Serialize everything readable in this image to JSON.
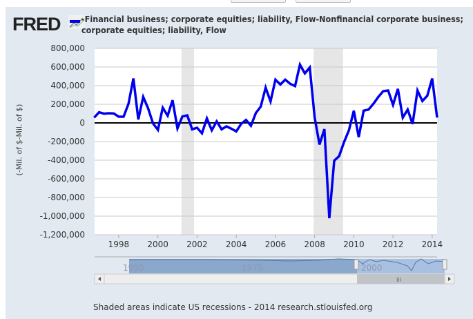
{
  "logo": "FRED",
  "legend": {
    "label": "-Financial business; corporate equities; liability, Flow-Nonfinancial corporate business; corporate equities; liability, Flow",
    "color": "#0000ee"
  },
  "footer": "Shaded areas indicate US recessions - 2014 research.stlouisfed.org",
  "navigator": {
    "labels": [
      "1950",
      "1975",
      "2000"
    ]
  },
  "chart_data": {
    "type": "line",
    "title": "",
    "xlabel": "",
    "ylabel": "(-Mil. of $-Mil. of $)",
    "ylim": [
      -1200000,
      800000
    ],
    "xlim": [
      1996.77,
      2014.25
    ],
    "yticks": [
      800000,
      600000,
      400000,
      200000,
      0,
      -200000,
      -400000,
      -600000,
      -800000,
      -1000000,
      -1200000
    ],
    "ytick_labels": [
      "800,000",
      "600,000",
      "400,000",
      "200,000",
      "0",
      "-200,000",
      "-400,000",
      "-600,000",
      "-800,000",
      "-1,000,000",
      "-1,200,000"
    ],
    "xticks": [
      1998,
      2000,
      2002,
      2004,
      2006,
      2008,
      2010,
      2012,
      2014
    ],
    "xtick_labels": [
      "1998",
      "2000",
      "2002",
      "2004",
      "2006",
      "2008",
      "2010",
      "2012",
      "2014"
    ],
    "grid": true,
    "recessions": [
      [
        2001.2,
        2001.85
      ],
      [
        2007.95,
        2009.45
      ]
    ],
    "series": [
      {
        "name": "-Financial business; corporate equities; liability, Flow-Nonfinancial corporate business; corporate equities; liability, Flow",
        "color": "#0000ee",
        "x_start": 1996.75,
        "x_step": 0.25,
        "values": [
          57000,
          114000,
          99000,
          104000,
          101000,
          67000,
          67000,
          205000,
          477000,
          37000,
          279000,
          156000,
          -5000,
          -74000,
          163000,
          77000,
          244000,
          -59000,
          69000,
          81000,
          -69000,
          -52000,
          -111000,
          49000,
          -79000,
          17000,
          -69000,
          -37000,
          -62000,
          -91000,
          -10000,
          32000,
          -30000,
          106000,
          175000,
          378000,
          230000,
          464000,
          412000,
          464000,
          420000,
          395000,
          625000,
          531000,
          595000,
          57000,
          -232000,
          -67000,
          -1022000,
          -405000,
          -356000,
          -207000,
          -79000,
          131000,
          -153000,
          131000,
          143000,
          205000,
          279000,
          341000,
          348000,
          193000,
          365000,
          57000,
          143000,
          -12000,
          348000,
          235000,
          291000,
          477000,
          57000
        ]
      }
    ]
  }
}
